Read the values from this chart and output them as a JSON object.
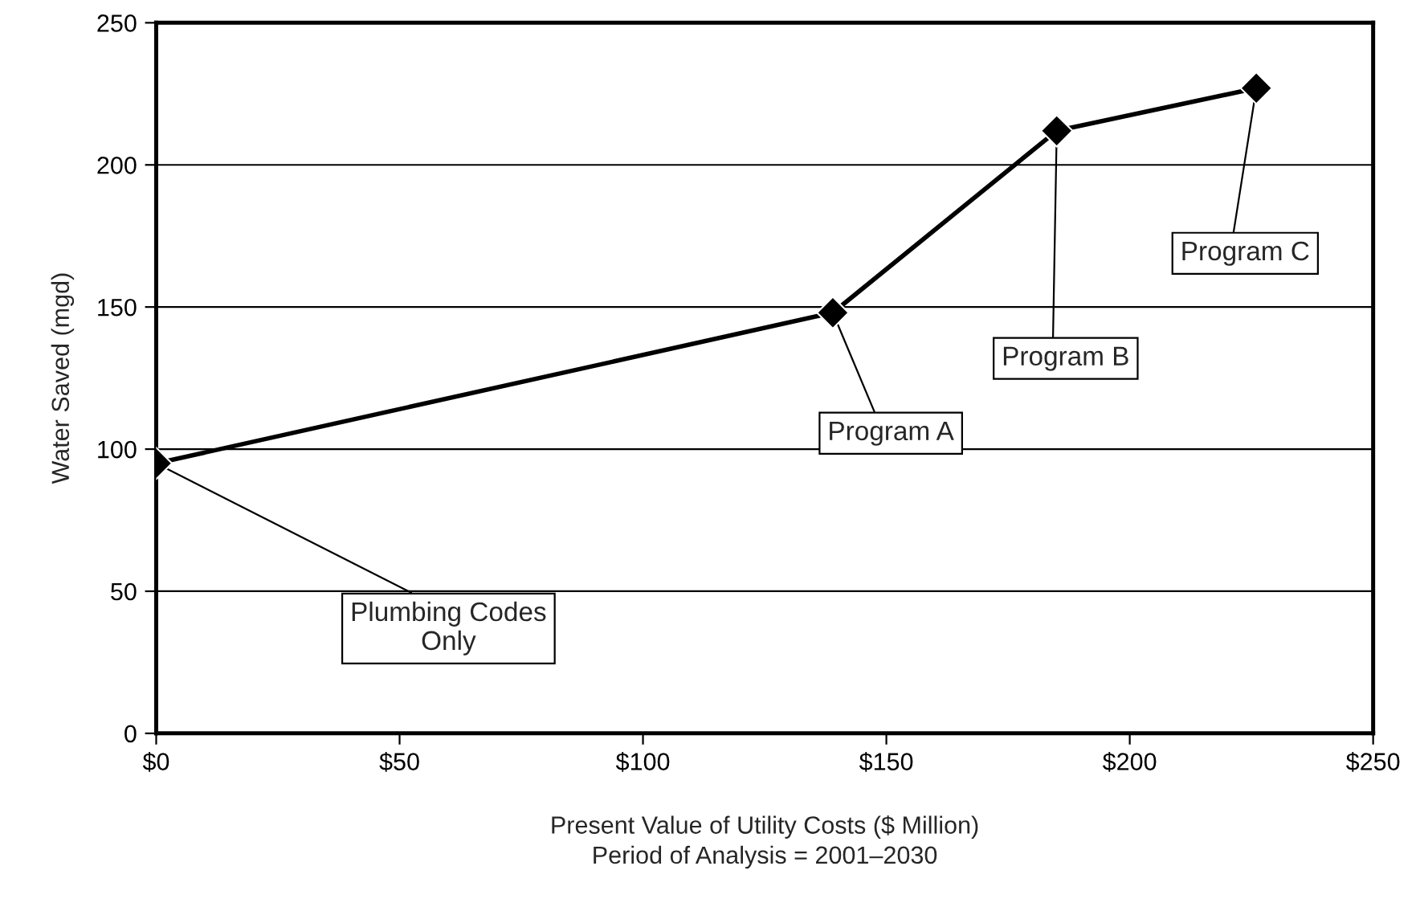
{
  "chart_data": {
    "type": "line",
    "xlabel": "Present Value of Utility Costs ($ Million)\nPeriod of Analysis = 2001–2030",
    "ylabel": "Water Saved (mgd)",
    "x": [
      0,
      139,
      185,
      226
    ],
    "series": [
      {
        "color": "#000000",
        "values": [
          95,
          148,
          212,
          227
        ]
      }
    ],
    "xlim": [
      0,
      250
    ],
    "xticks": [
      {
        "value": 0,
        "label": "$0"
      },
      {
        "value": 50,
        "label": "$50"
      },
      {
        "value": 100,
        "label": "$100"
      },
      {
        "value": 150,
        "label": "$150"
      },
      {
        "value": 200,
        "label": "$200"
      },
      {
        "value": 250,
        "label": "$250"
      }
    ],
    "ylim": [
      0,
      250
    ],
    "yticks": [
      0,
      50,
      100,
      150,
      200,
      250
    ],
    "grid": "y",
    "marker": "diamond",
    "line_style": "solid",
    "legend": false,
    "annotations": [
      {
        "text": "Plumbing Codes\nOnly",
        "x": 0,
        "y": 95
      },
      {
        "text": "Program A",
        "x": 139,
        "y": 148
      },
      {
        "text": "Program B",
        "x": 185,
        "y": 212
      },
      {
        "text": "Program C",
        "x": 226,
        "y": 227
      }
    ]
  }
}
